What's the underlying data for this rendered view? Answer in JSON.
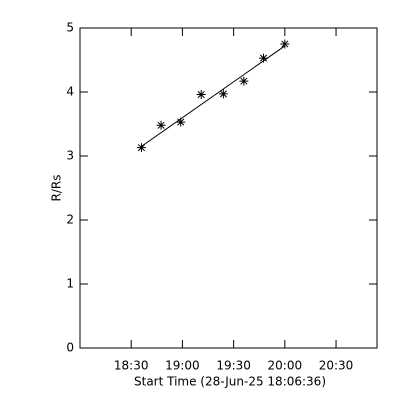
{
  "chart_data": {
    "type": "scatter",
    "xlabel": "Start Time (28-Jun-25 18:06:36)",
    "ylabel": "R/Rs",
    "x": [
      1116,
      1127.5,
      1139,
      1151,
      1164,
      1176,
      1187.5,
      1200
    ],
    "values": [
      3.13,
      3.48,
      3.53,
      3.96,
      3.97,
      4.17,
      4.53,
      4.75
    ],
    "color": "#000000",
    "fit": {
      "x": [
        1116,
        1200
      ],
      "values": [
        3.15,
        4.72
      ]
    },
    "xlim": [
      1080,
      1254
    ],
    "xticks": [
      {
        "value": 1110,
        "label": "18:30"
      },
      {
        "value": 1140,
        "label": "19:00"
      },
      {
        "value": 1170,
        "label": "19:30"
      },
      {
        "value": 1200,
        "label": "20:00"
      },
      {
        "value": 1230,
        "label": "20:30"
      }
    ],
    "ylim": [
      0,
      5
    ],
    "yticks": [
      0,
      1,
      2,
      3,
      4,
      5
    ]
  }
}
